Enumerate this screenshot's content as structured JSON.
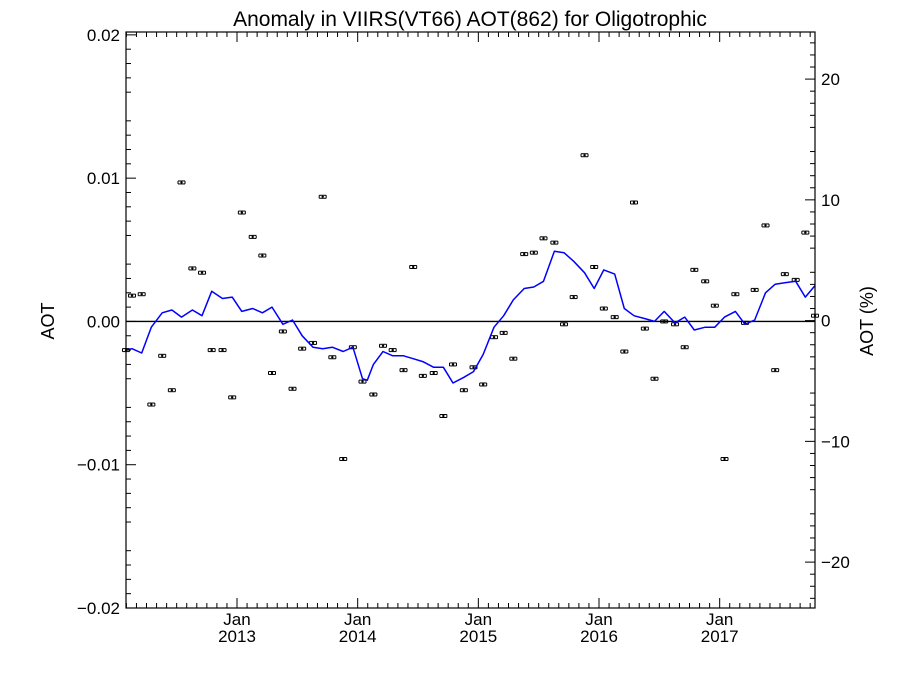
{
  "chart_data": {
    "type": "line",
    "title": "Anomaly in VIIRS(VT66) AOT(862) for Oligotrophic",
    "xlabel": "",
    "ylabel": "AOT",
    "ylabel_right": "AOT (%)",
    "xlim": [
      2012.08,
      2017.79
    ],
    "ylim": [
      -0.02,
      0.0202
    ],
    "ylim_right": [
      -23.8,
      23.9
    ],
    "x_ticks": [
      {
        "x": 2013.0,
        "month": "Jan",
        "year": "2013"
      },
      {
        "x": 2014.0,
        "month": "Jan",
        "year": "2014"
      },
      {
        "x": 2015.0,
        "month": "Jan",
        "year": "2015"
      },
      {
        "x": 2016.0,
        "month": "Jan",
        "year": "2016"
      },
      {
        "x": 2017.0,
        "month": "Jan",
        "year": "2017"
      }
    ],
    "y_ticks": [
      {
        "v": 0.02,
        "label": "0.02"
      },
      {
        "v": 0.01,
        "label": "0.01"
      },
      {
        "v": 0.0,
        "label": "0.00"
      },
      {
        "v": -0.01,
        "label": "−0.01"
      },
      {
        "v": -0.02,
        "label": "−0.02"
      }
    ],
    "y_ticks_right": [
      {
        "v": 20,
        "label": "20"
      },
      {
        "v": 10,
        "label": "10"
      },
      {
        "v": 0,
        "label": "0"
      },
      {
        "v": -10,
        "label": "−10"
      },
      {
        "v": -20,
        "label": "−20"
      }
    ],
    "zero_line": true,
    "series": [
      {
        "kind": "points-with-error-bars",
        "color": "#000000",
        "points": [
          [
            2012.08,
            -0.002
          ],
          [
            2012.13,
            0.0018
          ],
          [
            2012.21,
            0.0019
          ],
          [
            2012.29,
            -0.0058
          ],
          [
            2012.38,
            -0.0024
          ],
          [
            2012.46,
            -0.0048
          ],
          [
            2012.54,
            0.0097
          ],
          [
            2012.63,
            0.0037
          ],
          [
            2012.71,
            0.0034
          ],
          [
            2012.79,
            -0.002
          ],
          [
            2012.88,
            -0.002
          ],
          [
            2012.96,
            -0.0053
          ],
          [
            2013.04,
            0.0076
          ],
          [
            2013.13,
            0.0059
          ],
          [
            2013.21,
            0.0046
          ],
          [
            2013.29,
            -0.0036
          ],
          [
            2013.38,
            -0.0007
          ],
          [
            2013.46,
            -0.0047
          ],
          [
            2013.54,
            -0.0019
          ],
          [
            2013.63,
            -0.0015
          ],
          [
            2013.71,
            0.0087
          ],
          [
            2013.79,
            -0.0025
          ],
          [
            2013.88,
            -0.0096
          ],
          [
            2013.96,
            -0.0018
          ],
          [
            2014.04,
            -0.0042
          ],
          [
            2014.13,
            -0.0051
          ],
          [
            2014.21,
            -0.0017
          ],
          [
            2014.29,
            -0.002
          ],
          [
            2014.38,
            -0.0034
          ],
          [
            2014.46,
            0.0038
          ],
          [
            2014.54,
            -0.0038
          ],
          [
            2014.63,
            -0.0036
          ],
          [
            2014.71,
            -0.0066
          ],
          [
            2014.79,
            -0.003
          ],
          [
            2014.88,
            -0.0048
          ],
          [
            2014.96,
            -0.0032
          ],
          [
            2015.04,
            -0.0044
          ],
          [
            2015.13,
            -0.0011
          ],
          [
            2015.21,
            -0.0008
          ],
          [
            2015.29,
            -0.0026
          ],
          [
            2015.38,
            0.0047
          ],
          [
            2015.46,
            0.0048
          ],
          [
            2015.54,
            0.0058
          ],
          [
            2015.63,
            0.0055
          ],
          [
            2015.71,
            -0.0002
          ],
          [
            2015.79,
            0.0017
          ],
          [
            2015.88,
            0.0116
          ],
          [
            2015.96,
            0.0038
          ],
          [
            2016.04,
            0.0009
          ],
          [
            2016.13,
            0.0003
          ],
          [
            2016.21,
            -0.0021
          ],
          [
            2016.29,
            0.0083
          ],
          [
            2016.38,
            -0.0005
          ],
          [
            2016.46,
            -0.004
          ],
          [
            2016.54,
            0.0
          ],
          [
            2016.63,
            -0.0002
          ],
          [
            2016.71,
            -0.0018
          ],
          [
            2016.79,
            0.0036
          ],
          [
            2016.88,
            0.0028
          ],
          [
            2016.96,
            0.0011
          ],
          [
            2017.04,
            -0.0096
          ],
          [
            2017.13,
            0.0019
          ],
          [
            2017.21,
            -0.0001
          ],
          [
            2017.29,
            0.0022
          ],
          [
            2017.38,
            0.0067
          ],
          [
            2017.46,
            -0.0034
          ],
          [
            2017.54,
            0.0033
          ],
          [
            2017.63,
            0.0029
          ],
          [
            2017.71,
            0.0062
          ],
          [
            2017.79,
            0.0004
          ]
        ]
      },
      {
        "kind": "line",
        "color": "#0000ff",
        "points": [
          [
            2012.08,
            -0.002
          ],
          [
            2012.13,
            -0.0019
          ],
          [
            2012.21,
            -0.0022
          ],
          [
            2012.29,
            -0.0004
          ],
          [
            2012.38,
            0.0006
          ],
          [
            2012.46,
            0.0008
          ],
          [
            2012.54,
            0.0003
          ],
          [
            2012.63,
            0.0008
          ],
          [
            2012.71,
            0.0004
          ],
          [
            2012.79,
            0.0021
          ],
          [
            2012.88,
            0.0016
          ],
          [
            2012.96,
            0.0017
          ],
          [
            2013.04,
            0.0007
          ],
          [
            2013.13,
            0.0009
          ],
          [
            2013.21,
            0.0006
          ],
          [
            2013.29,
            0.001
          ],
          [
            2013.38,
            -0.0002
          ],
          [
            2013.46,
            0.0001
          ],
          [
            2013.54,
            -0.001
          ],
          [
            2013.63,
            -0.0018
          ],
          [
            2013.71,
            -0.0019
          ],
          [
            2013.79,
            -0.0018
          ],
          [
            2013.88,
            -0.0021
          ],
          [
            2013.96,
            -0.0018
          ],
          [
            2014.04,
            -0.004
          ],
          [
            2014.08,
            -0.0041
          ],
          [
            2014.13,
            -0.003
          ],
          [
            2014.21,
            -0.0021
          ],
          [
            2014.29,
            -0.0024
          ],
          [
            2014.38,
            -0.0024
          ],
          [
            2014.46,
            -0.0026
          ],
          [
            2014.54,
            -0.0028
          ],
          [
            2014.63,
            -0.0032
          ],
          [
            2014.71,
            -0.0032
          ],
          [
            2014.79,
            -0.0043
          ],
          [
            2014.88,
            -0.0039
          ],
          [
            2014.96,
            -0.0035
          ],
          [
            2015.04,
            -0.0023
          ],
          [
            2015.13,
            -0.0004
          ],
          [
            2015.21,
            0.0004
          ],
          [
            2015.29,
            0.0015
          ],
          [
            2015.38,
            0.0023
          ],
          [
            2015.46,
            0.0024
          ],
          [
            2015.54,
            0.0028
          ],
          [
            2015.63,
            0.0049
          ],
          [
            2015.71,
            0.0048
          ],
          [
            2015.79,
            0.0042
          ],
          [
            2015.88,
            0.0034
          ],
          [
            2015.96,
            0.0023
          ],
          [
            2016.04,
            0.0036
          ],
          [
            2016.13,
            0.0033
          ],
          [
            2016.21,
            0.0009
          ],
          [
            2016.29,
            0.0004
          ],
          [
            2016.38,
            0.0002
          ],
          [
            2016.46,
            0.0
          ],
          [
            2016.54,
            0.0007
          ],
          [
            2016.63,
            -0.0001
          ],
          [
            2016.71,
            0.0003
          ],
          [
            2016.79,
            -0.0006
          ],
          [
            2016.88,
            -0.0004
          ],
          [
            2016.96,
            -0.0004
          ],
          [
            2017.04,
            0.0003
          ],
          [
            2017.13,
            0.0007
          ],
          [
            2017.21,
            -0.0002
          ],
          [
            2017.29,
            0.0001
          ],
          [
            2017.38,
            0.002
          ],
          [
            2017.46,
            0.0026
          ],
          [
            2017.54,
            0.0027
          ],
          [
            2017.63,
            0.0028
          ],
          [
            2017.71,
            0.0017
          ],
          [
            2017.79,
            0.0025
          ]
        ]
      }
    ]
  }
}
